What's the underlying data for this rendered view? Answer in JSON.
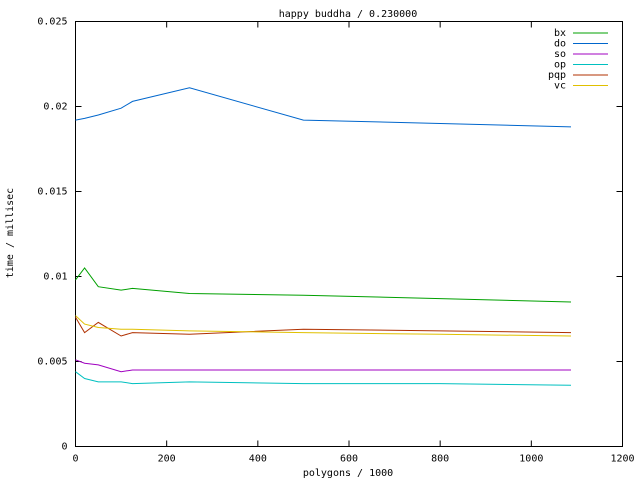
{
  "chart_data": {
    "type": "line",
    "title": "happy buddha / 0.230000",
    "x_label": "polygons / 1000",
    "y_label": "time / millisec",
    "x": [
      0,
      20,
      50,
      100,
      125,
      250,
      500,
      800,
      1087
    ],
    "series": [
      {
        "name": "bx",
        "color": "#00a000",
        "values": [
          0.0098,
          0.0105,
          0.0094,
          0.0092,
          0.0093,
          0.009,
          0.0089,
          0.0087,
          0.0085
        ]
      },
      {
        "name": "do",
        "color": "#0066cc",
        "values": [
          0.0192,
          0.0193,
          0.0195,
          0.0199,
          0.0203,
          0.0211,
          0.0192,
          0.019,
          0.0188
        ]
      },
      {
        "name": "so",
        "color": "#a000c0",
        "values": [
          0.0051,
          0.0049,
          0.0048,
          0.0044,
          0.0045,
          0.0045,
          0.0045,
          0.0045,
          0.0045
        ]
      },
      {
        "name": "op",
        "color": "#00c0c0",
        "values": [
          0.0044,
          0.004,
          0.0038,
          0.0038,
          0.0037,
          0.0038,
          0.0037,
          0.0037,
          0.0036
        ]
      },
      {
        "name": "pqp",
        "color": "#b03000",
        "values": [
          0.0076,
          0.0067,
          0.0073,
          0.0065,
          0.0067,
          0.0066,
          0.0069,
          0.0068,
          0.0067
        ]
      },
      {
        "name": "vc",
        "color": "#e0c000",
        "values": [
          0.0077,
          0.0072,
          0.007,
          0.0069,
          0.0069,
          0.0068,
          0.0067,
          0.0066,
          0.0065
        ]
      }
    ],
    "xlim": [
      0,
      1200
    ],
    "xticks": [
      0,
      200,
      400,
      600,
      800,
      1000,
      1200
    ],
    "ylim": [
      0,
      0.025
    ],
    "yticks": [
      0,
      0.005,
      0.01,
      0.015,
      0.02,
      0.025
    ],
    "legend": "top-right",
    "grid": false
  }
}
